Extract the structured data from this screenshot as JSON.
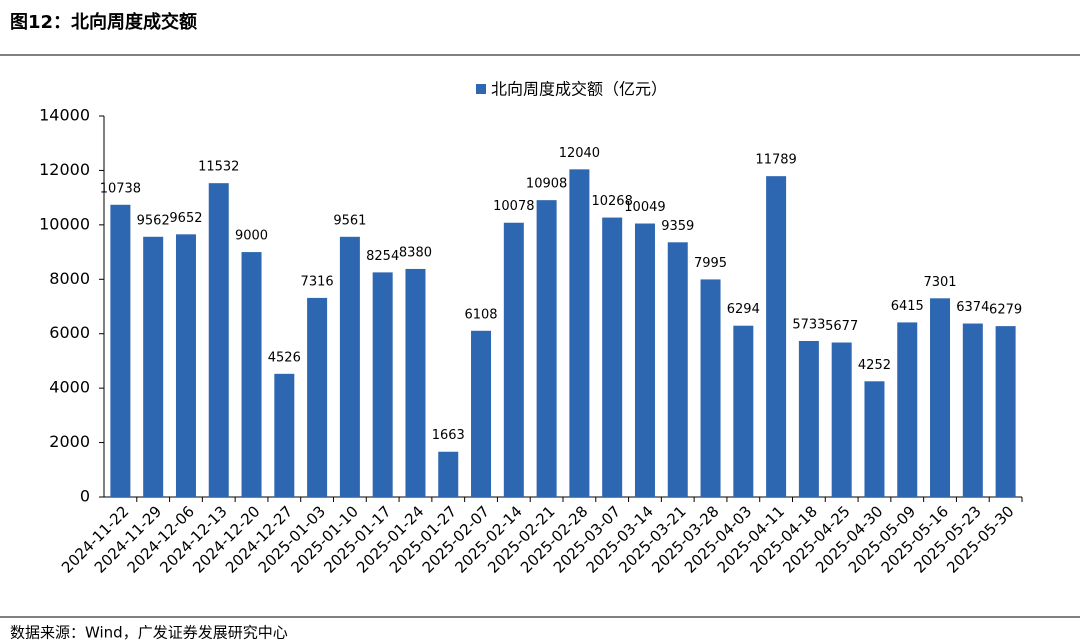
{
  "chart_data": {
    "type": "bar",
    "title": "图12：北向周度成交额",
    "categories": [
      "2024-11-22",
      "2024-11-29",
      "2024-12-06",
      "2024-12-13",
      "2024-12-20",
      "2024-12-27",
      "2025-01-03",
      "2025-01-10",
      "2025-01-17",
      "2025-01-24",
      "2025-01-27",
      "2025-02-07",
      "2025-02-14",
      "2025-02-21",
      "2025-02-28",
      "2025-03-07",
      "2025-03-14",
      "2025-03-21",
      "2025-03-28",
      "2025-04-03",
      "2025-04-11",
      "2025-04-18",
      "2025-04-25",
      "2025-04-30",
      "2025-05-09",
      "2025-05-16",
      "2025-05-23",
      "2025-05-30"
    ],
    "series": [
      {
        "name": "北向周度成交额（亿元）",
        "color": "#2e67b1",
        "values": [
          10738,
          9562,
          9652,
          11532,
          9000,
          4526,
          7316,
          9561,
          8254,
          8380,
          1663,
          6108,
          10078,
          10908,
          12040,
          10268,
          10049,
          9359,
          7995,
          6294,
          11789,
          5733,
          5677,
          4252,
          6415,
          7301,
          6374,
          6279
        ]
      }
    ],
    "ylim": [
      0,
      14000
    ],
    "yticks": [
      0,
      2000,
      4000,
      6000,
      8000,
      10000,
      12000,
      14000
    ],
    "grid": false,
    "legend": "top",
    "source": "数据来源：Wind，广发证券发展研究中心"
  }
}
